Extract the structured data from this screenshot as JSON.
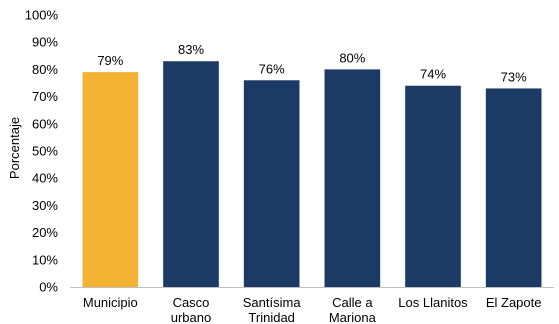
{
  "chart_data": {
    "type": "bar",
    "categories": [
      [
        "Municipio"
      ],
      [
        "Casco",
        "urbano"
      ],
      [
        "Santísima",
        "Trinidad"
      ],
      [
        "Calle a",
        "Mariona"
      ],
      [
        "Los Llanitos"
      ],
      [
        "El Zapote"
      ]
    ],
    "values": [
      79,
      83,
      76,
      80,
      74,
      73
    ],
    "data_labels": [
      "79%",
      "83%",
      "76%",
      "80%",
      "74%",
      "73%"
    ],
    "ylabel": "Porcentaje",
    "ylim": [
      0,
      100
    ],
    "yticks": [
      "0%",
      "10%",
      "20%",
      "30%",
      "40%",
      "50%",
      "60%",
      "70%",
      "80%",
      "90%",
      "100%"
    ],
    "grid": false,
    "legend": "none",
    "colors": [
      "#F4B333",
      "#1B3B64",
      "#1B3B64",
      "#1B3B64",
      "#1B3B64",
      "#1B3B64"
    ]
  }
}
